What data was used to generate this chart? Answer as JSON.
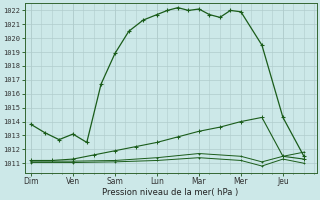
{
  "bg_color": "#cce8e8",
  "grid_color": "#b0cccc",
  "line_color": "#1a5c1a",
  "marker_color": "#1a5c1a",
  "xlabel": "Pression niveau de la mer( hPa )",
  "ylim": [
    1010.3,
    1022.5
  ],
  "yticks": [
    1011,
    1012,
    1013,
    1014,
    1015,
    1016,
    1017,
    1018,
    1019,
    1020,
    1021,
    1022
  ],
  "x_labels": [
    "Dim",
    "Ven",
    "Sam",
    "Lun",
    "Mar",
    "Mer",
    "Jeu"
  ],
  "x_positions": [
    0,
    1,
    2,
    3,
    4,
    5,
    6
  ],
  "xlim": [
    -0.15,
    6.8
  ],
  "series1": {
    "x": [
      0,
      0.33,
      0.67,
      1.0,
      1.33,
      1.67,
      2.0,
      2.33,
      2.67,
      3.0,
      3.25,
      3.5,
      3.75,
      4.0,
      4.25,
      4.5,
      4.75,
      5.0,
      5.5,
      6.0,
      6.5
    ],
    "y": [
      1013.8,
      1013.2,
      1012.7,
      1013.1,
      1012.5,
      1016.7,
      1018.9,
      1020.5,
      1021.3,
      1021.7,
      1022.0,
      1022.2,
      1022.0,
      1022.1,
      1021.7,
      1021.5,
      1022.0,
      1021.9,
      1019.5,
      1014.3,
      1011.5
    ]
  },
  "series2": {
    "x": [
      0,
      0.5,
      1.0,
      1.5,
      2.0,
      2.5,
      3.0,
      3.5,
      4.0,
      4.5,
      5.0,
      5.5,
      6.0,
      6.5
    ],
    "y": [
      1011.2,
      1011.2,
      1011.3,
      1011.6,
      1011.9,
      1012.2,
      1012.5,
      1012.9,
      1013.3,
      1013.6,
      1014.0,
      1014.3,
      1011.5,
      1011.3
    ]
  },
  "series3": {
    "x": [
      0,
      1.0,
      2.0,
      3.0,
      4.0,
      5.0,
      5.5,
      6.0,
      6.5
    ],
    "y": [
      1011.15,
      1011.15,
      1011.2,
      1011.4,
      1011.7,
      1011.5,
      1011.1,
      1011.5,
      1011.8
    ]
  },
  "series4": {
    "x": [
      0,
      1.0,
      2.0,
      3.0,
      4.0,
      5.0,
      5.5,
      6.0,
      6.5
    ],
    "y": [
      1011.05,
      1011.05,
      1011.1,
      1011.2,
      1011.4,
      1011.2,
      1010.8,
      1011.3,
      1011.0
    ]
  }
}
